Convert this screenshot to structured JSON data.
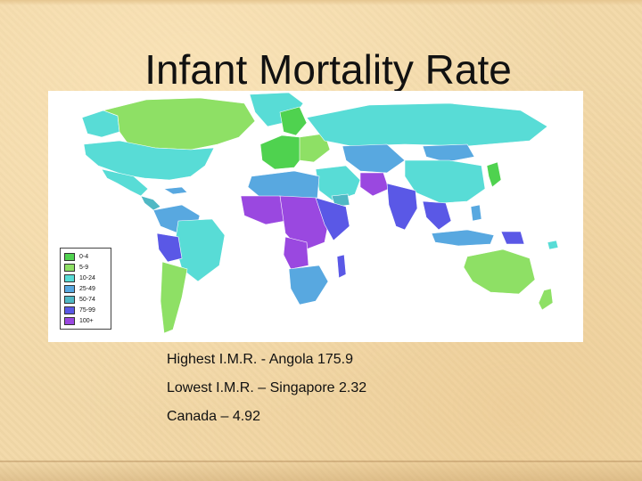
{
  "slide": {
    "title": "Infant Mortality Rate",
    "facts": [
      "Highest I.M.R. - Angola 175.9",
      "Lowest I.M.R. – Singapore 2.32",
      "Canada – 4.92"
    ]
  },
  "map": {
    "legend": [
      {
        "label": "0-4",
        "color": "#4fd24f"
      },
      {
        "label": "5-9",
        "color": "#8ee065"
      },
      {
        "label": "10-24",
        "color": "#58dcd6"
      },
      {
        "label": "25-49",
        "color": "#58a8e0"
      },
      {
        "label": "50-74",
        "color": "#50b8c4"
      },
      {
        "label": "75-99",
        "color": "#5a58e6"
      },
      {
        "label": "100+",
        "color": "#9a48e0"
      }
    ]
  }
}
